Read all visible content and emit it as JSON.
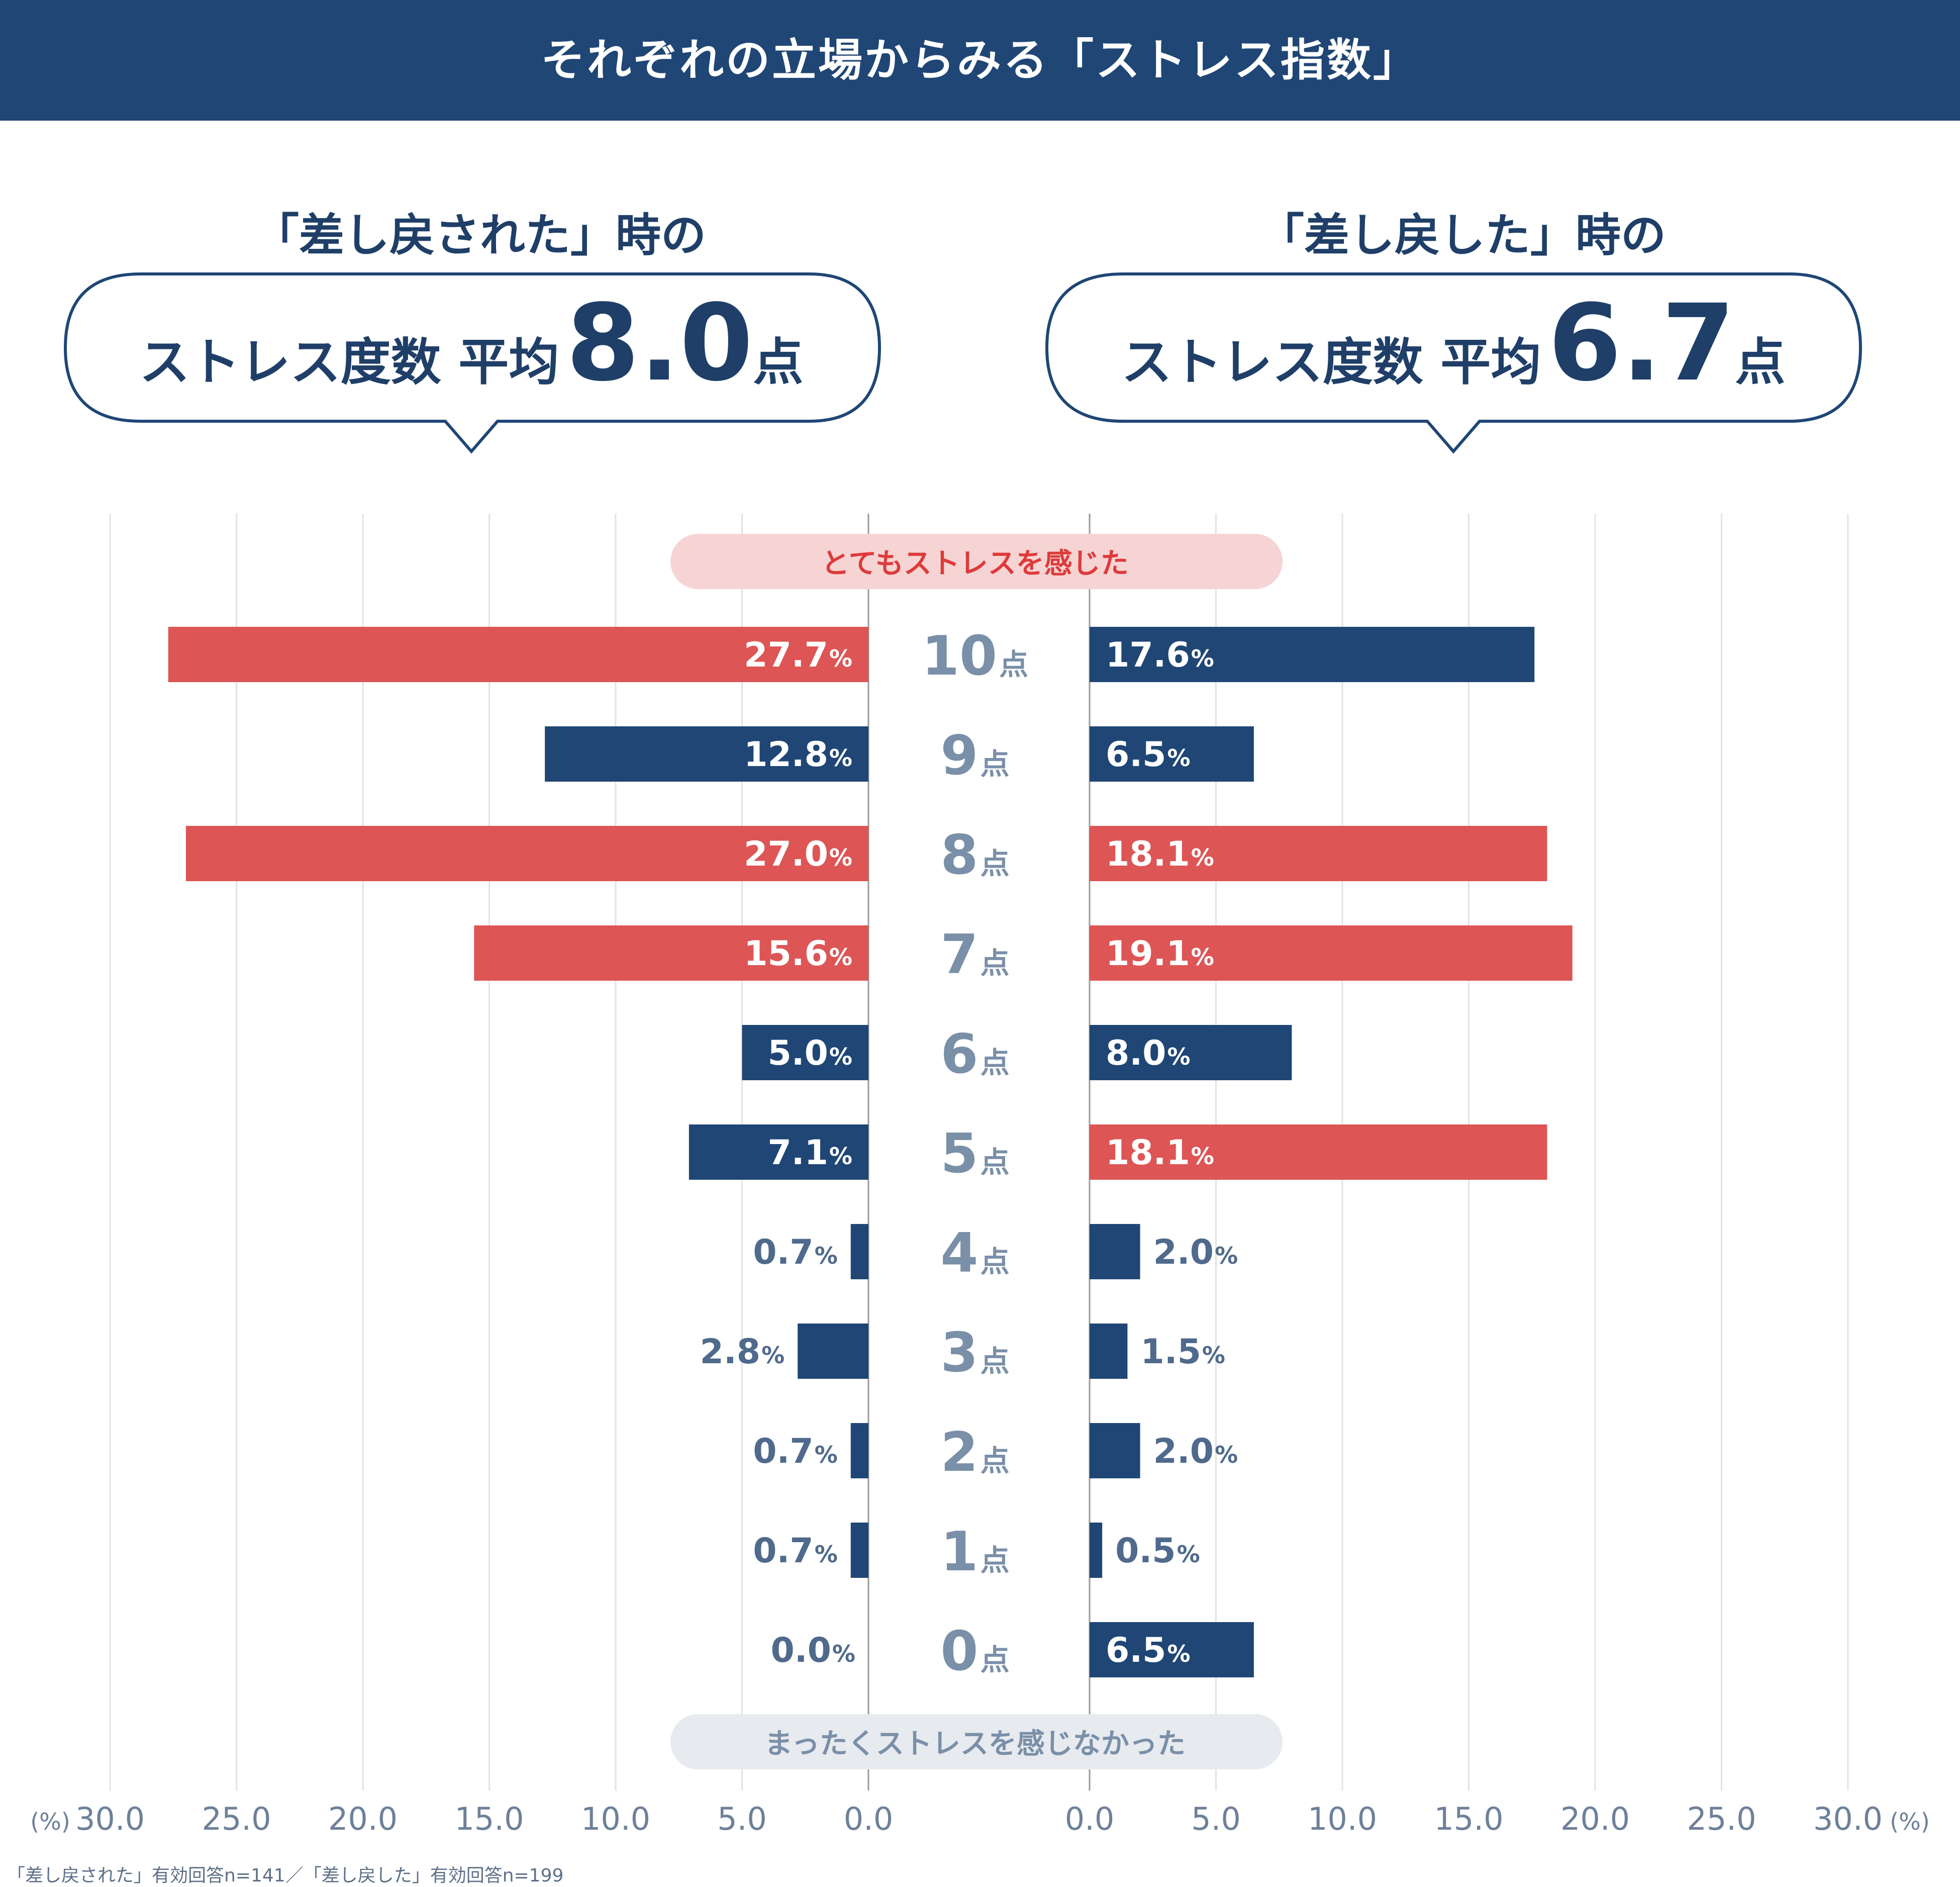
{
  "header": {
    "title": "それぞれの立場からみる「ストレス指数」"
  },
  "left_summary": {
    "label": "「差し戻された」時の",
    "metric": "ストレス度数 平均",
    "value": "8.0",
    "unit": "点"
  },
  "right_summary": {
    "label": "「差し戻した」時の",
    "metric": "ストレス度数 平均",
    "value": "6.7",
    "unit": "点"
  },
  "colors": {
    "header": "#1f4675",
    "navy": "#1f4675",
    "red": "#dd5555",
    "score_label": "#7a8fa8",
    "top_pill_bg": "#f7d4d4",
    "top_pill_text": "#dd3b3b",
    "bottom_pill_bg": "#e7eaee",
    "bottom_pill_text": "#7a8fa8"
  },
  "chart_data": {
    "type": "bar",
    "orientation": "horizontal-diverging",
    "categories": [
      "10点",
      "9点",
      "8点",
      "7点",
      "6点",
      "5点",
      "4点",
      "3点",
      "2点",
      "1点",
      "0点"
    ],
    "score_numbers": [
      "10",
      "9",
      "8",
      "7",
      "6",
      "5",
      "4",
      "3",
      "2",
      "1",
      "0"
    ],
    "score_unit": "点",
    "series": [
      {
        "name": "「差し戻された」",
        "side": "left",
        "values": [
          27.7,
          12.8,
          27.0,
          15.6,
          5.0,
          7.1,
          0.7,
          2.8,
          0.7,
          0.7,
          0.0
        ],
        "labels": [
          "27.7",
          "12.8",
          "27.0",
          "15.6",
          "5.0",
          "7.1",
          "0.7",
          "2.8",
          "0.7",
          "0.7",
          "0.0"
        ],
        "highlight": [
          true,
          false,
          true,
          true,
          false,
          false,
          false,
          false,
          false,
          false,
          false
        ]
      },
      {
        "name": "「差し戻した」",
        "side": "right",
        "values": [
          17.6,
          6.5,
          18.1,
          19.1,
          8.0,
          18.1,
          2.0,
          1.5,
          2.0,
          0.5,
          6.5
        ],
        "labels": [
          "17.6",
          "6.5",
          "18.1",
          "19.1",
          "8.0",
          "18.1",
          "2.0",
          "1.5",
          "2.0",
          "0.5",
          "6.5"
        ],
        "highlight": [
          false,
          false,
          true,
          true,
          false,
          true,
          false,
          false,
          false,
          false,
          false
        ]
      }
    ],
    "value_unit": "%",
    "xlim": [
      0,
      30
    ],
    "ticks": [
      "0.0",
      "5.0",
      "10.0",
      "15.0",
      "20.0",
      "25.0",
      "30.0"
    ],
    "axis_unit": "(%)",
    "top_label": "とてもストレスを感じた",
    "bottom_label": "まったくストレスを感じなかった"
  },
  "footnote": "「差し戻された」有効回答n=141／「差し戻した」有効回答n=199"
}
